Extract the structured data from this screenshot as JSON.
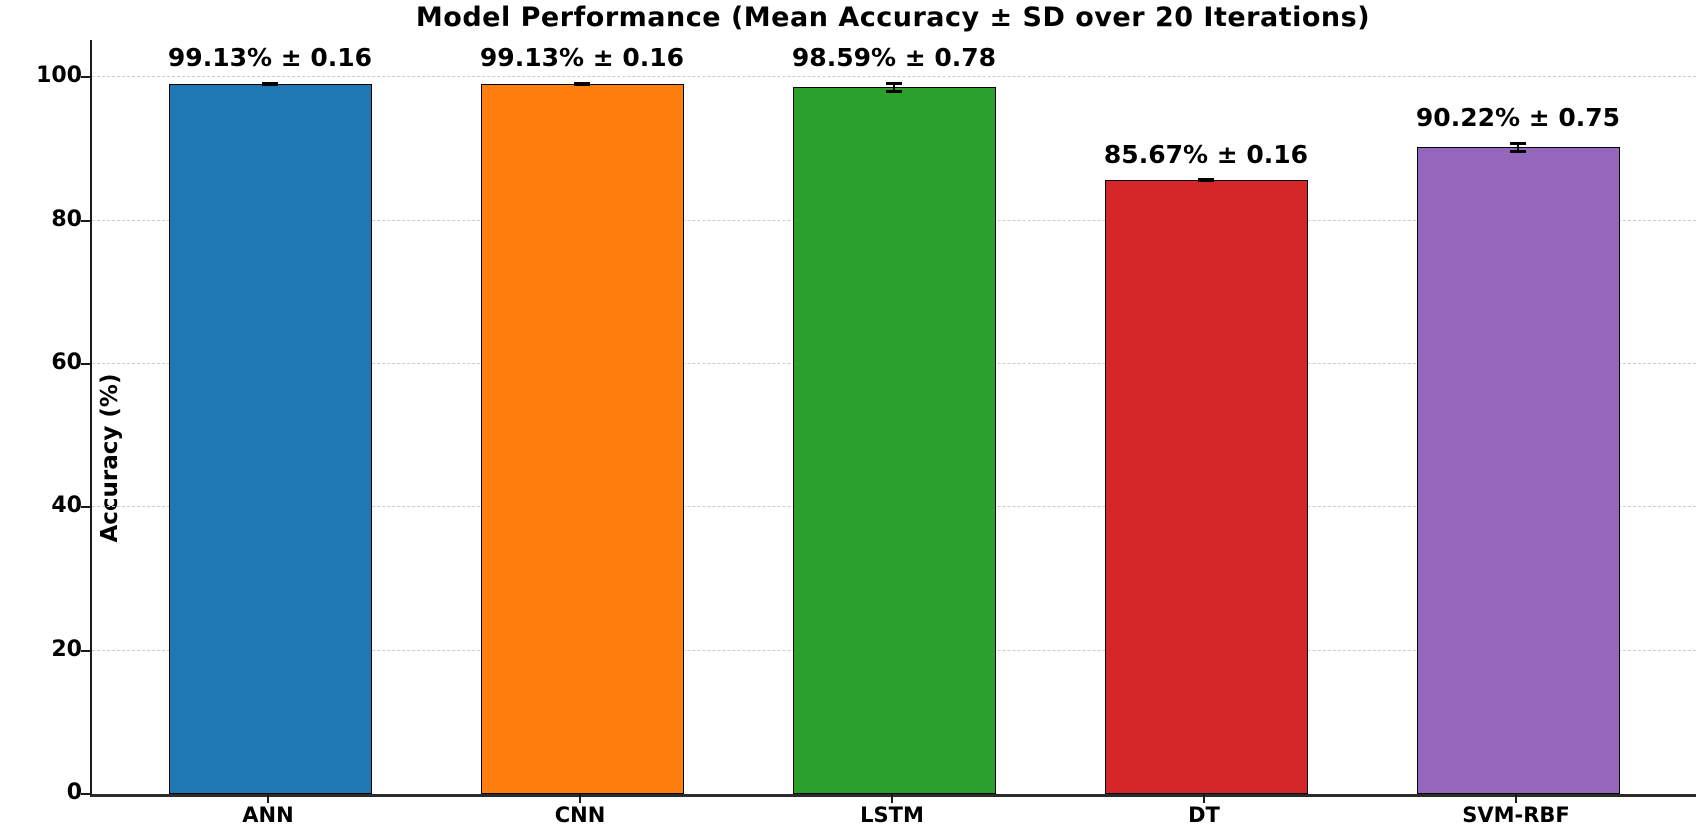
{
  "chart_data": {
    "type": "bar",
    "title": "Model Performance (Mean Accuracy ± SD over 20 Iterations)",
    "xlabel": "",
    "ylabel": "Accuracy (%)",
    "categories": [
      "ANN",
      "CNN",
      "LSTM",
      "DT",
      "SVM-RBF"
    ],
    "values": [
      99.13,
      99.13,
      98.59,
      85.67,
      90.22
    ],
    "errors": [
      0.16,
      0.16,
      0.78,
      0.16,
      0.75
    ],
    "value_labels": [
      "99.13% ± 0.16",
      "99.13% ± 0.16",
      "98.59% ± 0.78",
      "85.67% ± 0.16",
      "90.22% ± 0.75"
    ],
    "bar_colors": [
      "#1f77b4",
      "#ff7f0e",
      "#2ca02c",
      "#d62728",
      "#9467bd"
    ],
    "bar_edge_color": "#000000",
    "error_bar_color": "#000000",
    "yticks": [
      0,
      20,
      40,
      60,
      80,
      100
    ],
    "ylim": [
      0,
      105.2
    ],
    "grid": "horizontal-dashed",
    "grid_color": "#cccccc",
    "legend": "none"
  }
}
